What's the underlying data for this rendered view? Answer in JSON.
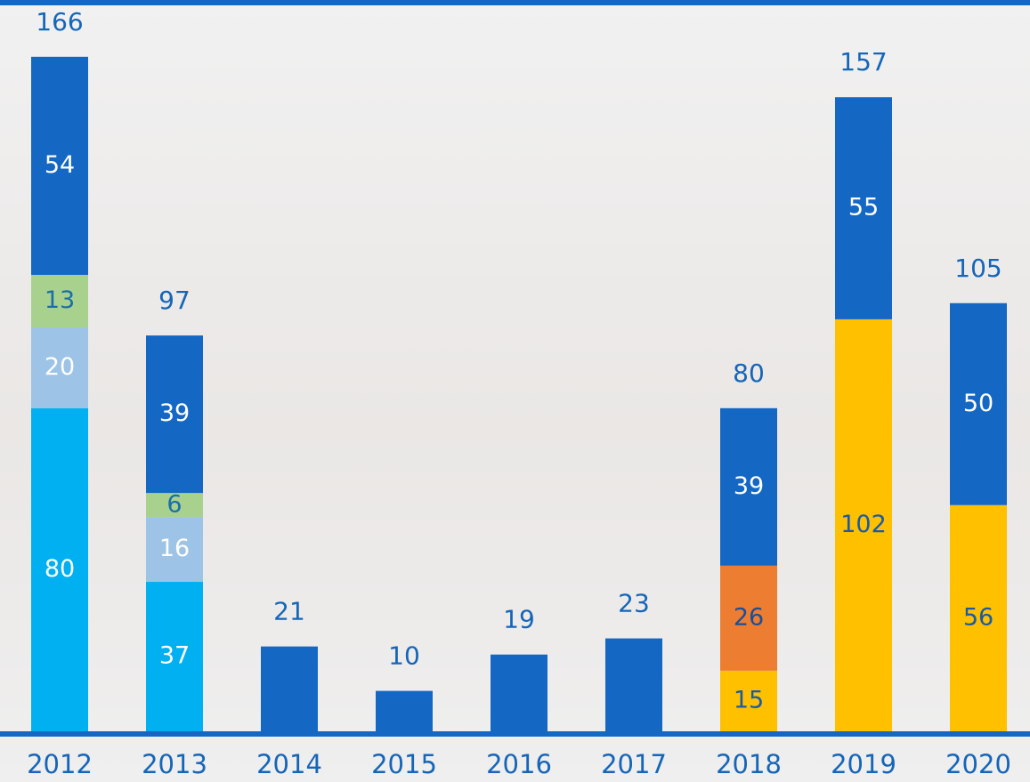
{
  "chart_data": {
    "type": "stacked-bar",
    "categories": [
      "2012",
      "2013",
      "2014",
      "2015",
      "2016",
      "2017",
      "2018",
      "2019",
      "2020"
    ],
    "series": [
      {
        "color": "#00b0f0",
        "values": [
          80,
          37,
          null,
          null,
          null,
          null,
          null,
          null,
          null
        ]
      },
      {
        "color": "#9dc3e6",
        "values": [
          20,
          16,
          null,
          null,
          null,
          null,
          null,
          null,
          null
        ]
      },
      {
        "color": "#a9d18e",
        "values": [
          13,
          6,
          null,
          null,
          null,
          null,
          null,
          null,
          null
        ]
      },
      {
        "color": "#ffc000",
        "values": [
          null,
          null,
          null,
          null,
          null,
          null,
          15,
          102,
          56
        ]
      },
      {
        "color": "#ed7d31",
        "values": [
          null,
          null,
          null,
          null,
          null,
          null,
          26,
          null,
          null
        ]
      },
      {
        "color": "#1567c4",
        "values": [
          54,
          39,
          21,
          10,
          19,
          23,
          39,
          55,
          50
        ]
      }
    ],
    "totals": [
      166,
      97,
      21,
      10,
      19,
      23,
      80,
      157,
      105
    ]
  }
}
